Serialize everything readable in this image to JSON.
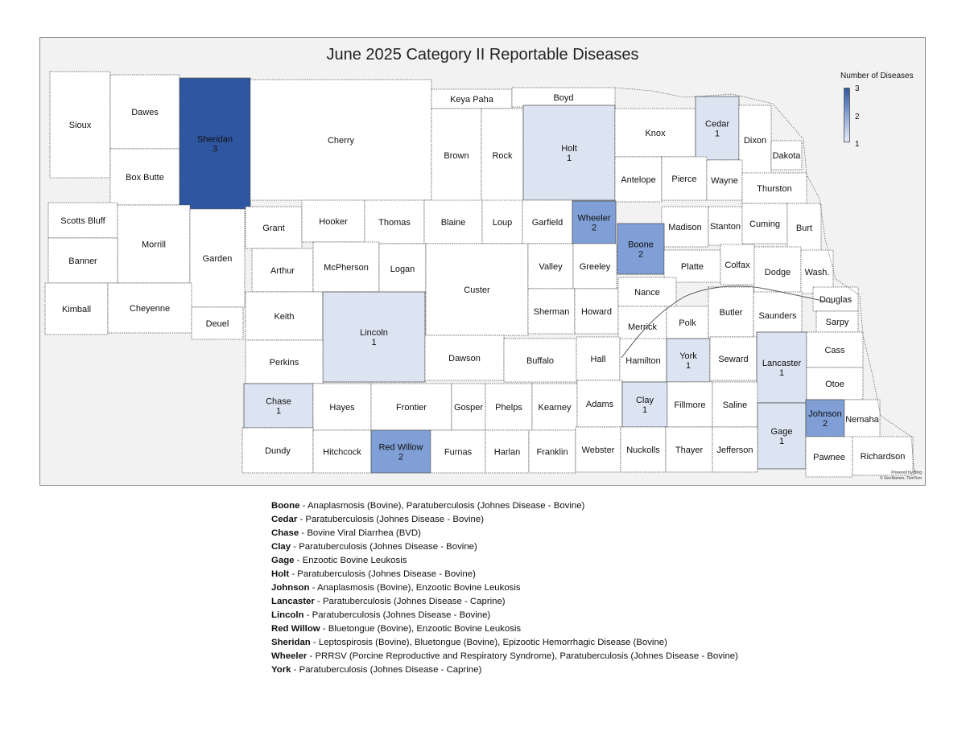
{
  "map": {
    "title": "June 2025 Category II Reportable Diseases",
    "legend": {
      "title": "Number of Diseases",
      "max_label": "3",
      "mid_label": "2",
      "min_label": "1"
    },
    "attribution": [
      "Powered by Bing",
      "© GeoNames, TomTom"
    ],
    "colors": {
      "background": "#f2f2f2",
      "county_default": "#ffffff",
      "level_1": "#dce4f2",
      "level_2": "#7f9fd6",
      "level_3": "#2f56a1",
      "border": "#555555"
    },
    "counties": [
      {
        "id": "sioux",
        "name": "Sioux"
      },
      {
        "id": "dawes",
        "name": "Dawes"
      },
      {
        "id": "box-butte",
        "name": "Box Butte"
      },
      {
        "id": "sheridan",
        "name": "Sheridan",
        "count": "3"
      },
      {
        "id": "cherry",
        "name": "Cherry"
      },
      {
        "id": "keya-paha",
        "name": "Keya Paha"
      },
      {
        "id": "boyd",
        "name": "Boyd"
      },
      {
        "id": "brown",
        "name": "Brown"
      },
      {
        "id": "rock",
        "name": "Rock"
      },
      {
        "id": "holt",
        "name": "Holt",
        "count": "1"
      },
      {
        "id": "knox",
        "name": "Knox"
      },
      {
        "id": "cedar",
        "name": "Cedar",
        "count": "1"
      },
      {
        "id": "dixon",
        "name": "Dixon"
      },
      {
        "id": "dakota",
        "name": "Dakota"
      },
      {
        "id": "antelope",
        "name": "Antelope"
      },
      {
        "id": "pierce",
        "name": "Pierce"
      },
      {
        "id": "wayne",
        "name": "Wayne"
      },
      {
        "id": "thurston",
        "name": "Thurston"
      },
      {
        "id": "scotts-bluff",
        "name": "Scotts Bluff"
      },
      {
        "id": "morrill",
        "name": "Morrill"
      },
      {
        "id": "banner",
        "name": "Banner"
      },
      {
        "id": "garden",
        "name": "Garden"
      },
      {
        "id": "kimball",
        "name": "Kimball"
      },
      {
        "id": "cheyenne",
        "name": "Cheyenne"
      },
      {
        "id": "deuel",
        "name": "Deuel"
      },
      {
        "id": "grant",
        "name": "Grant"
      },
      {
        "id": "hooker",
        "name": "Hooker"
      },
      {
        "id": "thomas",
        "name": "Thomas"
      },
      {
        "id": "blaine",
        "name": "Blaine"
      },
      {
        "id": "loup",
        "name": "Loup"
      },
      {
        "id": "garfield",
        "name": "Garfield"
      },
      {
        "id": "wheeler",
        "name": "Wheeler",
        "count": "2"
      },
      {
        "id": "madison",
        "name": "Madison"
      },
      {
        "id": "stanton",
        "name": "Stanton"
      },
      {
        "id": "cuming",
        "name": "Cuming"
      },
      {
        "id": "burt",
        "name": "Burt"
      },
      {
        "id": "arthur",
        "name": "Arthur"
      },
      {
        "id": "mcpherson",
        "name": "McPherson"
      },
      {
        "id": "logan",
        "name": "Logan"
      },
      {
        "id": "custer",
        "name": "Custer"
      },
      {
        "id": "valley",
        "name": "Valley"
      },
      {
        "id": "greeley",
        "name": "Greeley"
      },
      {
        "id": "boone",
        "name": "Boone",
        "count": "2"
      },
      {
        "id": "platte",
        "name": "Platte"
      },
      {
        "id": "colfax",
        "name": "Colfax"
      },
      {
        "id": "dodge",
        "name": "Dodge"
      },
      {
        "id": "washington",
        "name": "Wash."
      },
      {
        "id": "keith",
        "name": "Keith"
      },
      {
        "id": "lincoln",
        "name": "Lincoln",
        "count": "1"
      },
      {
        "id": "sherman",
        "name": "Sherman"
      },
      {
        "id": "howard",
        "name": "Howard"
      },
      {
        "id": "nance",
        "name": "Nance"
      },
      {
        "id": "merrick",
        "name": "Merrick"
      },
      {
        "id": "polk",
        "name": "Polk"
      },
      {
        "id": "butler",
        "name": "Butler"
      },
      {
        "id": "saunders",
        "name": "Saunders"
      },
      {
        "id": "douglas",
        "name": "Douglas"
      },
      {
        "id": "sarpy",
        "name": "Sarpy"
      },
      {
        "id": "perkins",
        "name": "Perkins"
      },
      {
        "id": "dawson",
        "name": "Dawson"
      },
      {
        "id": "buffalo",
        "name": "Buffalo"
      },
      {
        "id": "hall",
        "name": "Hall"
      },
      {
        "id": "hamilton",
        "name": "Hamilton"
      },
      {
        "id": "york",
        "name": "York",
        "count": "1"
      },
      {
        "id": "seward",
        "name": "Seward"
      },
      {
        "id": "lancaster",
        "name": "Lancaster",
        "count": "1"
      },
      {
        "id": "cass",
        "name": "Cass"
      },
      {
        "id": "otoe",
        "name": "Otoe"
      },
      {
        "id": "chase",
        "name": "Chase",
        "count": "1"
      },
      {
        "id": "hayes",
        "name": "Hayes"
      },
      {
        "id": "frontier",
        "name": "Frontier"
      },
      {
        "id": "gosper",
        "name": "Gosper"
      },
      {
        "id": "phelps",
        "name": "Phelps"
      },
      {
        "id": "kearney",
        "name": "Kearney"
      },
      {
        "id": "adams",
        "name": "Adams"
      },
      {
        "id": "clay",
        "name": "Clay",
        "count": "1"
      },
      {
        "id": "fillmore",
        "name": "Fillmore"
      },
      {
        "id": "saline",
        "name": "Saline"
      },
      {
        "id": "gage",
        "name": "Gage",
        "count": "1"
      },
      {
        "id": "johnson",
        "name": "Johnson",
        "count": "2"
      },
      {
        "id": "nemaha",
        "name": "Nemaha"
      },
      {
        "id": "dundy",
        "name": "Dundy"
      },
      {
        "id": "hitchcock",
        "name": "Hitchcock"
      },
      {
        "id": "red-willow",
        "name": "Red Willow",
        "count": "2"
      },
      {
        "id": "furnas",
        "name": "Furnas"
      },
      {
        "id": "harlan",
        "name": "Harlan"
      },
      {
        "id": "franklin",
        "name": "Franklin"
      },
      {
        "id": "webster",
        "name": "Webster"
      },
      {
        "id": "nuckolls",
        "name": "Nuckolls"
      },
      {
        "id": "thayer",
        "name": "Thayer"
      },
      {
        "id": "jefferson",
        "name": "Jefferson"
      },
      {
        "id": "pawnee",
        "name": "Pawnee"
      },
      {
        "id": "richardson",
        "name": "Richardson"
      }
    ]
  },
  "notes": [
    {
      "county": "Boone",
      "diseases": "Anaplasmosis (Bovine), Paratuberculosis (Johnes Disease - Bovine)"
    },
    {
      "county": "Cedar",
      "diseases": "Paratuberculosis (Johnes Disease - Bovine)"
    },
    {
      "county": "Chase",
      "diseases": "Bovine Viral Diarrhea (BVD)"
    },
    {
      "county": "Clay",
      "diseases": "Paratuberculosis (Johnes Disease - Bovine)"
    },
    {
      "county": "Gage",
      "diseases": "Enzootic Bovine Leukosis"
    },
    {
      "county": "Holt",
      "diseases": "Paratuberculosis (Johnes Disease - Bovine)"
    },
    {
      "county": "Johnson",
      "diseases": "Anaplasmosis (Bovine), Enzootic Bovine Leukosis"
    },
    {
      "county": "Lancaster",
      "diseases": "Paratuberculosis (Johnes Disease - Caprine)"
    },
    {
      "county": "Lincoln",
      "diseases": "Paratuberculosis (Johnes Disease - Bovine)"
    },
    {
      "county": "Red Willow",
      "diseases": "Bluetongue (Bovine), Enzootic Bovine Leukosis"
    },
    {
      "county": "Sheridan",
      "diseases": "Leptospirosis (Bovine), Bluetongue (Bovine), Epizootic Hemorrhagic Disease (Bovine)"
    },
    {
      "county": "Wheeler",
      "diseases": "PRRSV (Porcine Reproductive and Respiratory Syndrome), Paratuberculosis (Johnes Disease - Bovine)"
    },
    {
      "county": "York",
      "diseases": "Paratuberculosis (Johnes Disease - Caprine)"
    }
  ]
}
